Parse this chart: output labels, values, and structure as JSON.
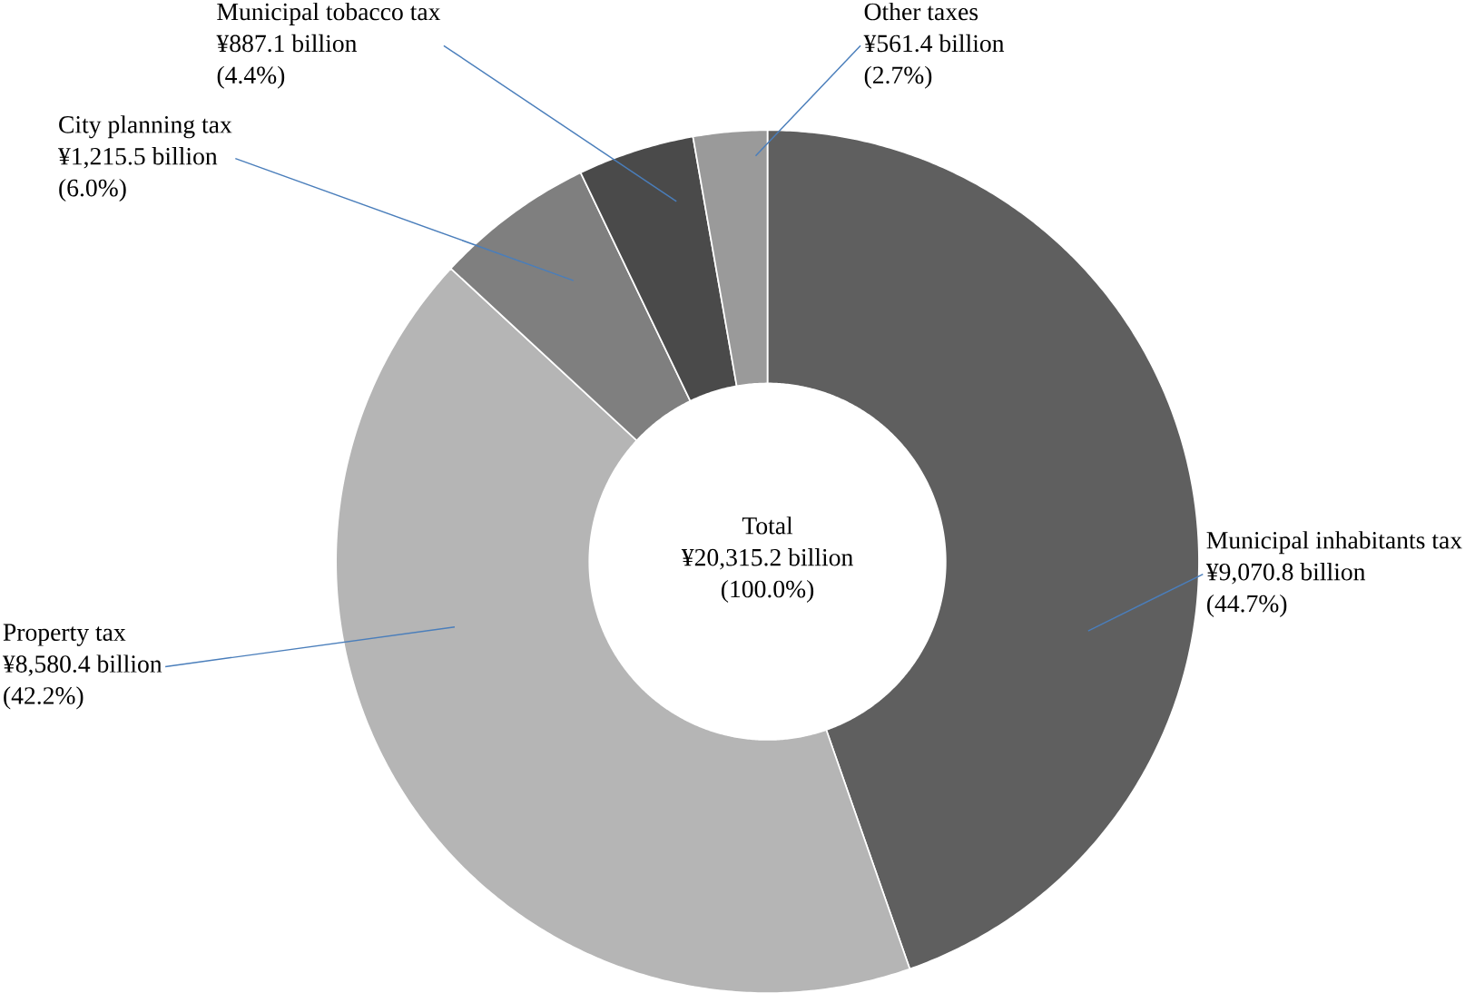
{
  "chart_data": {
    "type": "donut",
    "title": "Total",
    "subtitle": "¥20,315.2 billion",
    "categories": [
      "Municipal inhabitants tax",
      "Property tax",
      "City planning tax",
      "Municipal tobacco tax",
      "Other taxes"
    ],
    "values": [
      9070.8,
      8580.4,
      1215.5,
      887.1,
      561.4
    ],
    "colors": [
      "#5f5f5f",
      "#b5b5b5",
      "#7f7f7f",
      "#4a4a4a",
      "#9a9a9a"
    ],
    "value_labels": [
      "¥9,070.8 billion",
      "¥8,580.4 billion",
      "¥1,215.5 billion",
      "¥887.1 billion",
      "¥561.4 billion"
    ],
    "annotations": [
      "(44.7%)",
      "(42.2%)",
      "(6.0%)",
      "(4.4%)",
      "(2.7%)",
      "(100.0%)"
    ]
  }
}
